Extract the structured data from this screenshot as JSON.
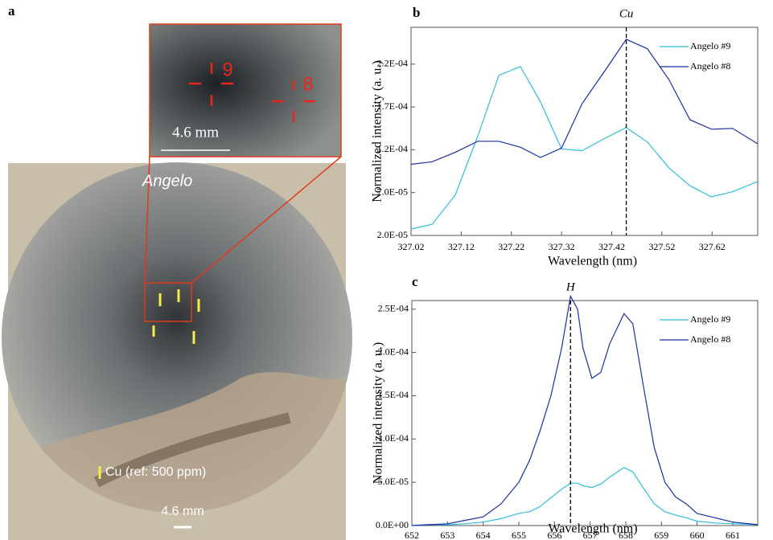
{
  "panel_a": {
    "label": "a",
    "title": "Angelo",
    "points": [
      "9",
      "8"
    ],
    "inset_scale": "4.6 mm",
    "legend": "Cu (ref: 500 ppm)",
    "scale": "4.6 mm"
  },
  "chart_data": [
    {
      "type": "line",
      "panel_label": "b",
      "title": "Cu",
      "marker_x": 327.449,
      "xlabel": "Wavelength (nm)",
      "ylabel": "Normalized intensity (a. u.)",
      "x": [
        327.02,
        327.062,
        327.108,
        327.153,
        327.195,
        327.238,
        327.278,
        327.32,
        327.361,
        327.405,
        327.449,
        327.491,
        327.534,
        327.576,
        327.619,
        327.661,
        327.711
      ],
      "series": [
        {
          "name": "Angelo #9",
          "color": "#2fbde0",
          "values": [
            2.75e-05,
            3.3e-05,
            6.7e-05,
            0.000136,
            0.000207,
            0.000217,
            0.000176,
            0.000121,
            0.000119,
            0.000133,
            0.000146,
            0.000129,
            9.9e-05,
            7.8e-05,
            6.5e-05,
            7.1e-05,
            8.3e-05
          ]
        },
        {
          "name": "Angelo #8",
          "color": "#1a2ea6",
          "values": [
            0.000103,
            0.000106,
            0.000117,
            0.00013,
            0.00013,
            0.000123,
            0.000111,
            0.000122,
            0.000174,
            0.000211,
            0.000249,
            0.000238,
            0.000202,
            0.000155,
            0.000144,
            0.000145,
            0.000127
          ]
        }
      ],
      "xlim": [
        327.02,
        327.711
      ],
      "xticks": [
        327.02,
        327.12,
        327.22,
        327.32,
        327.42,
        327.52,
        327.62
      ],
      "ylim": [
        2e-05,
        0.000263
      ],
      "yticks": [
        {
          "value": 2e-05,
          "label": "2.0E-05"
        },
        {
          "value": 7e-05,
          "label": "7.0E-05"
        },
        {
          "value": 0.00012,
          "label": "1.2E-04"
        },
        {
          "value": 0.00017,
          "label": "1.7E-04"
        },
        {
          "value": 0.00022,
          "label": "2.2E-04"
        }
      ],
      "legend": "upper right",
      "grid": false
    },
    {
      "type": "line",
      "panel_label": "c",
      "title": "H",
      "marker_x": 656.45,
      "xlabel": "Wavelength (nm)",
      "ylabel": "Normalized intensity (a. u.)",
      "x": [
        652,
        652.5,
        653,
        653.5,
        654,
        654.5,
        655,
        655.3,
        655.6,
        655.9,
        656.2,
        656.45,
        656.65,
        656.8,
        657.05,
        657.3,
        657.55,
        657.95,
        658.2,
        658.5,
        658.8,
        659.1,
        659.4,
        659.7,
        660,
        660.5,
        661,
        661.7
      ],
      "series": [
        {
          "name": "Angelo #9",
          "color": "#2fbde0",
          "values": [
            0,
            1e-06,
            1e-06,
            2e-06,
            4e-06,
            8e-06,
            1.4e-05,
            1.6e-05,
            2.2e-05,
            3.2e-05,
            4.2e-05,
            4.9e-05,
            4.9e-05,
            4.6e-05,
            4.4e-05,
            4.8e-05,
            5.6e-05,
            6.7e-05,
            6.2e-05,
            4.3e-05,
            2.5e-05,
            1.6e-05,
            1.2e-05,
            9e-06,
            5e-06,
            3e-06,
            2e-06,
            1e-06
          ]
        },
        {
          "name": "Angelo #8",
          "color": "#1a2ea6",
          "values": [
            0,
            1e-06,
            2e-06,
            6e-06,
            1e-05,
            2.5e-05,
            5e-05,
            7.5e-05,
            0.00011,
            0.00015,
            0.000205,
            0.000265,
            0.00025,
            0.000205,
            0.00017,
            0.000177,
            0.00021,
            0.000245,
            0.000233,
            0.00016,
            9e-05,
            5e-05,
            3.3e-05,
            2.5e-05,
            1.4e-05,
            9e-06,
            4e-06,
            1e-06
          ]
        }
      ],
      "xlim": [
        652,
        661.7
      ],
      "xticks": [
        652,
        653,
        654,
        655,
        656,
        657,
        658,
        659,
        660,
        661,
        662
      ],
      "ylim": [
        0,
        0.00026
      ],
      "yticks": [
        {
          "value": 0,
          "label": "0.0E+00"
        },
        {
          "value": 5e-05,
          "label": "5.0E-05"
        },
        {
          "value": 0.0001,
          "label": "1.0E-04"
        },
        {
          "value": 0.00015,
          "label": "1.5E-04"
        },
        {
          "value": 0.0002,
          "label": "2.0E-04"
        },
        {
          "value": 0.00025,
          "label": "2.5E-04"
        }
      ],
      "legend": "upper right",
      "grid": false
    }
  ]
}
